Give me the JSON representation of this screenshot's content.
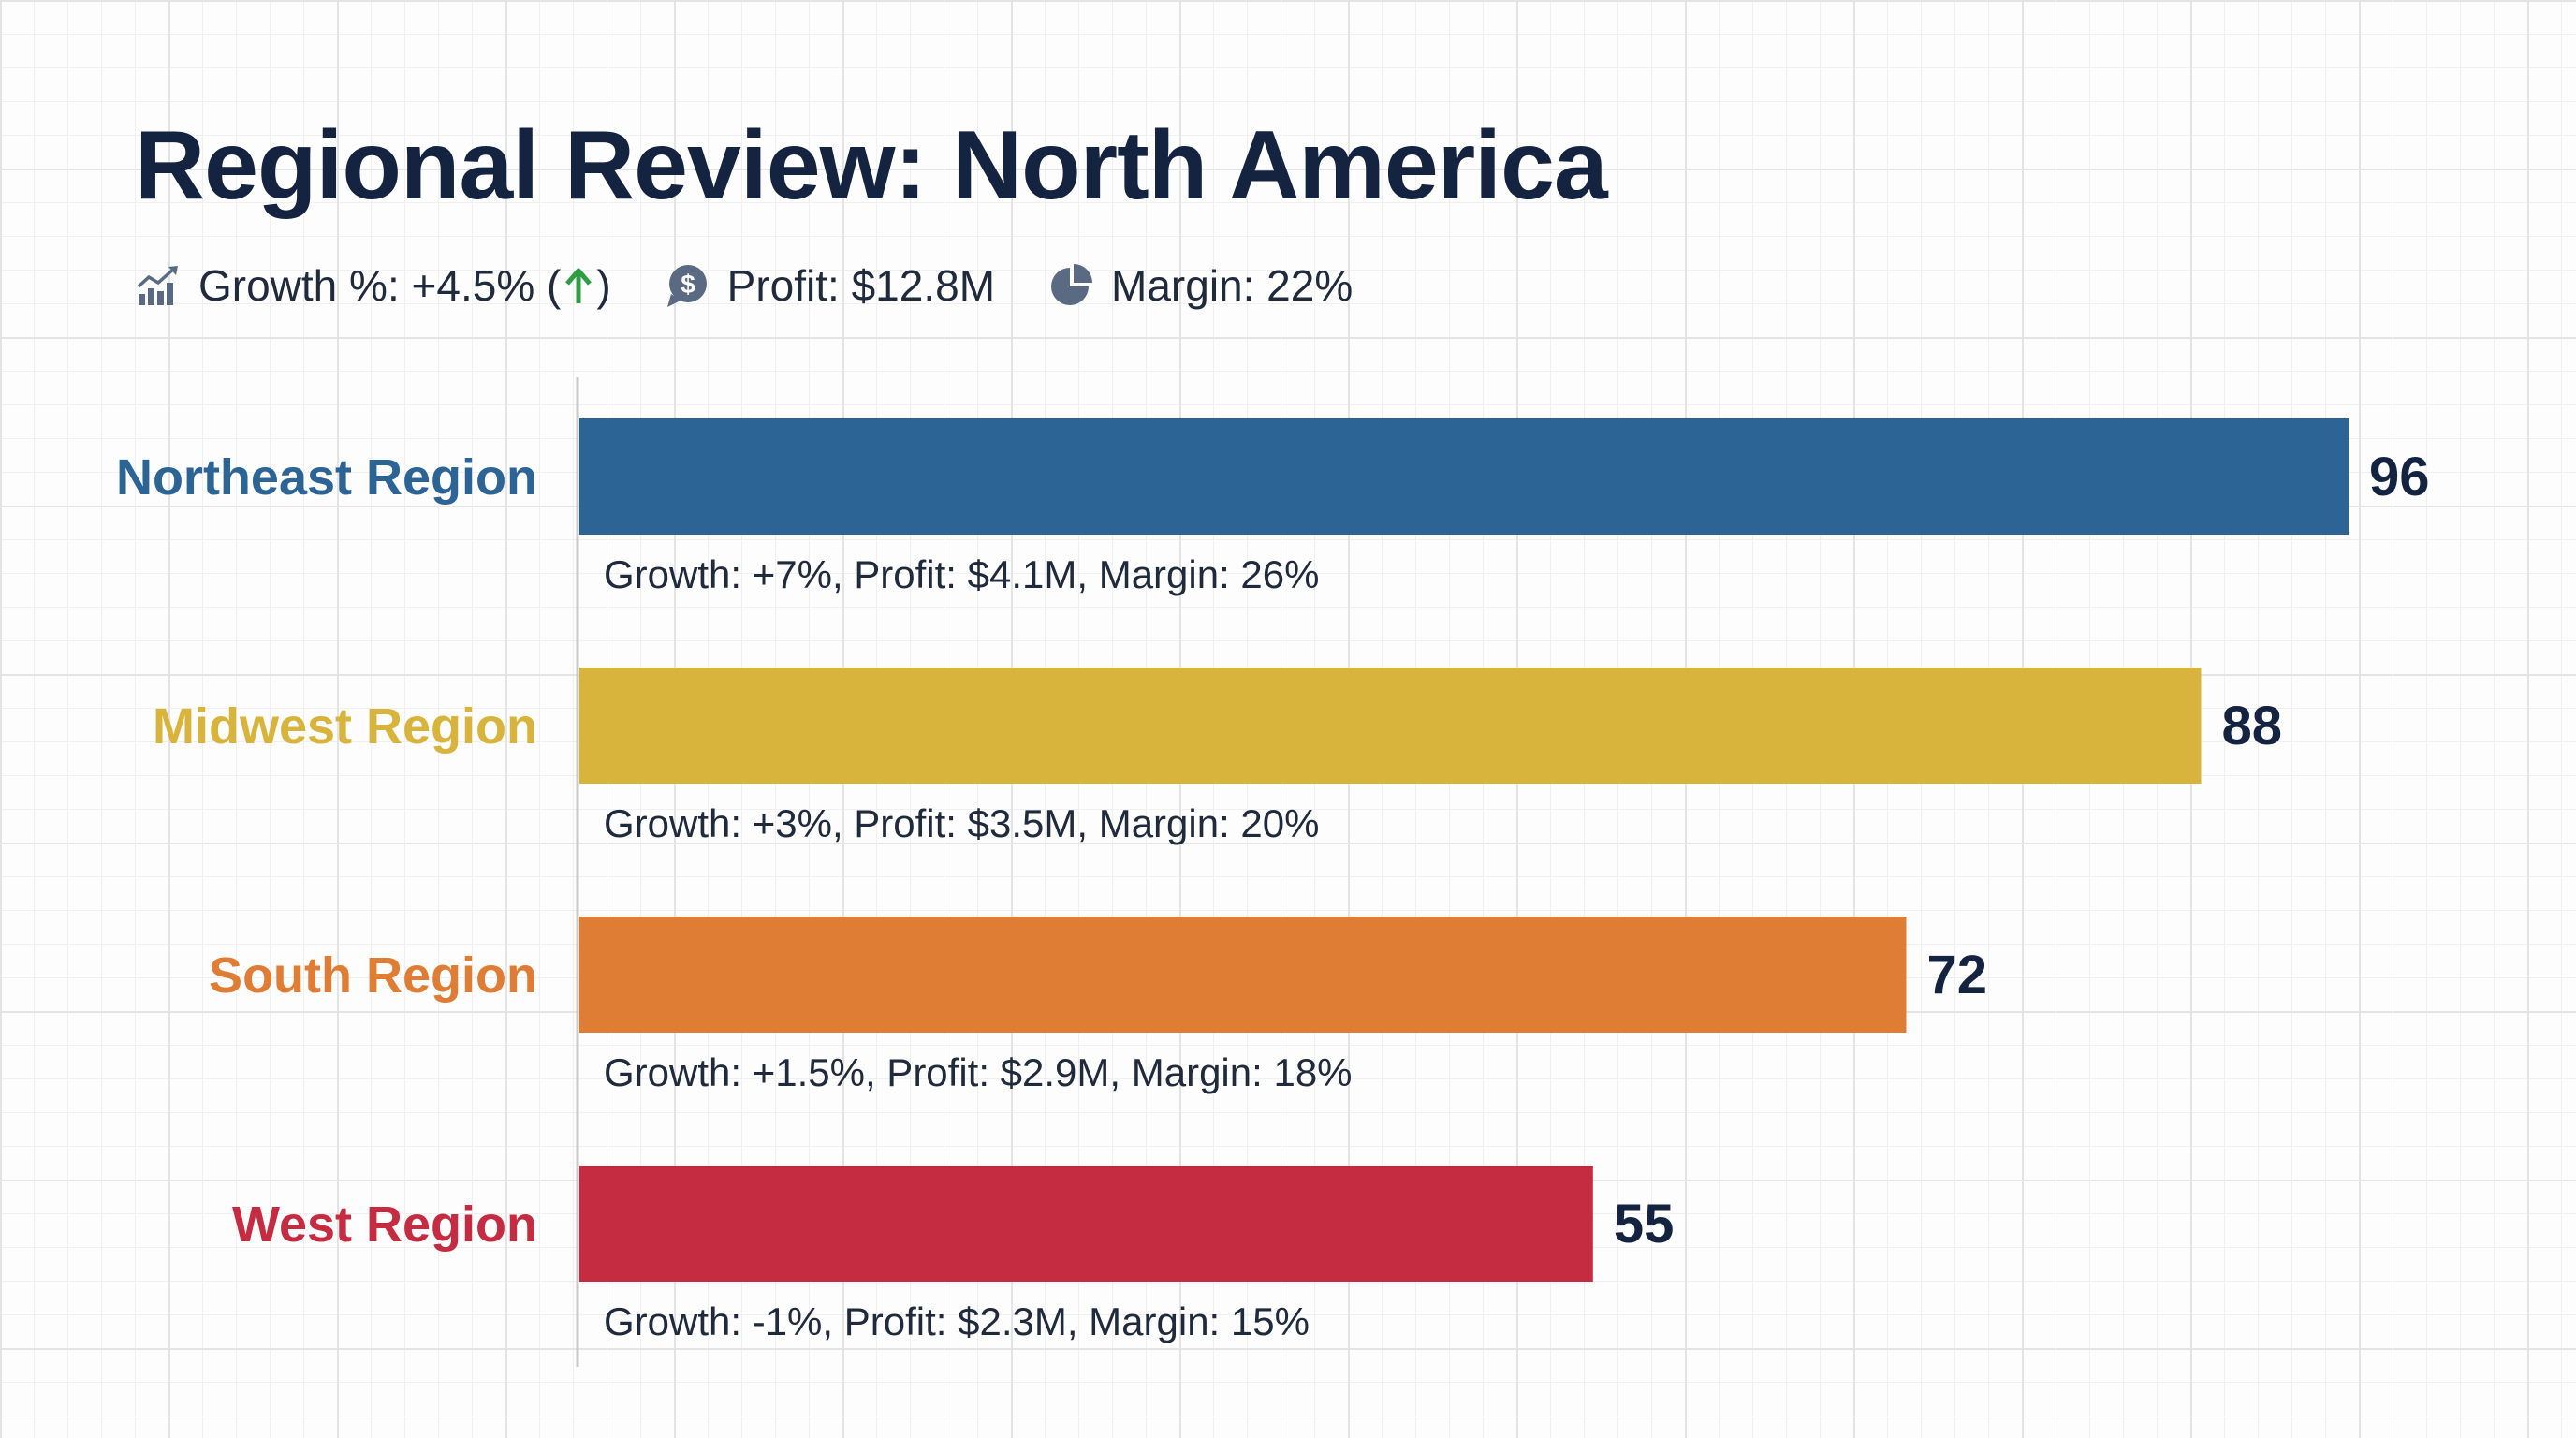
{
  "header": {
    "title": "Regional Review: North America",
    "kpis": {
      "growth_label": "Growth %: +4.5% (",
      "growth_close": ")",
      "profit_label": "Profit: $12.8M",
      "margin_label": "Margin: 22%"
    },
    "icons": [
      "growth-chart-icon",
      "up-arrow-icon",
      "dollar-coin-icon",
      "pie-chart-icon"
    ]
  },
  "colors": {
    "northeast": "#2c6496",
    "midwest": "#d9b43c",
    "south": "#e07d35",
    "west": "#c52c42",
    "up_arrow": "#2e9e45",
    "icon": "#5a6a82"
  },
  "chart_data": {
    "type": "bar",
    "orientation": "horizontal",
    "title": "Regional Review: North America",
    "categories": [
      "Northeast Region",
      "Midwest Region",
      "South Region",
      "West Region"
    ],
    "values": [
      96,
      88,
      72,
      55
    ],
    "annotations": [
      "Growth: +7%, Profit: $4.1M, Margin: 26%",
      "Growth: +3%, Profit: $3.5M, Margin: 20%",
      "Growth: +1.5%, Profit: $2.9M, Margin: 18%",
      "Growth: -1%, Profit: $2.3M, Margin: 15%"
    ],
    "colors": [
      "#2c6496",
      "#d9b43c",
      "#e07d35",
      "#c52c42"
    ],
    "xlim": [
      0,
      96
    ],
    "xlabel": "",
    "ylabel": "",
    "grid": true,
    "legend": "none"
  }
}
